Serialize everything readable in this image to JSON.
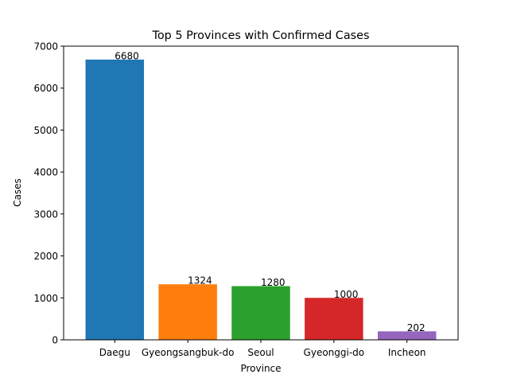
{
  "chart_data": {
    "type": "bar",
    "title": "Top 5 Provinces with Confirmed Cases",
    "xlabel": "Province",
    "ylabel": "Cases",
    "categories": [
      "Daegu",
      "Gyeongsangbuk-do",
      "Seoul",
      "Gyeonggi-do",
      "Incheon"
    ],
    "values": [
      6680,
      1324,
      1280,
      1000,
      202
    ],
    "data_labels": [
      "6680",
      "1324",
      "1280",
      "1000",
      "202"
    ],
    "colors": [
      "#1f77b4",
      "#ff7f0e",
      "#2ca02c",
      "#d62728",
      "#9467bd"
    ],
    "ylim": [
      0,
      7000
    ],
    "yticks": [
      0,
      1000,
      2000,
      3000,
      4000,
      5000,
      6000,
      7000
    ],
    "ytick_labels": [
      "0",
      "1000",
      "2000",
      "3000",
      "4000",
      "5000",
      "6000",
      "7000"
    ],
    "grid": false,
    "legend": "none"
  }
}
